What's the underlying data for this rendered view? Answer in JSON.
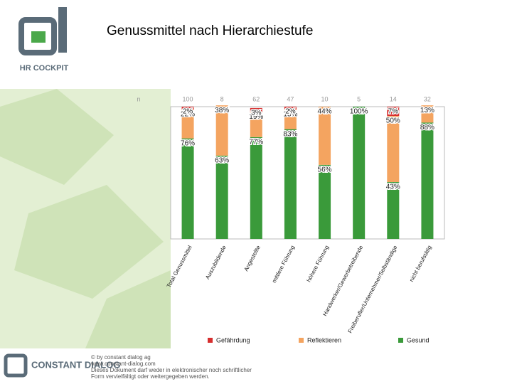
{
  "header": {
    "title": "Genussmittel nach Hierarchiestufe",
    "logo": "HR COCKPIT"
  },
  "chart_data": {
    "type": "stacked_bar",
    "categories": [
      "Total Genussmittel",
      "Auszubildende",
      "Angestellte",
      "mittlere Führung",
      "höhere Führung",
      "Handwerker/Gewerbetreibende",
      "Freiberufler/Unternehmer/Selbständige",
      "nicht berufstätig"
    ],
    "sample_size_label": "n",
    "sample_sizes": [
      100,
      8,
      62,
      47,
      10,
      5,
      14,
      32
    ],
    "ylim": [
      0,
      100
    ],
    "series": [
      {
        "name": "Gesund",
        "color": "#3a9a3a",
        "values": [
          76,
          63,
          77,
          83,
          56,
          100,
          43,
          88
        ],
        "value_labels": [
          "76%",
          "63%",
          "77%",
          "83%",
          "56%",
          "100%",
          "43%",
          "88%"
        ]
      },
      {
        "name": "Reflektieren",
        "color": "#f4a460",
        "values": [
          22,
          38,
          19,
          15,
          44,
          0,
          50,
          13
        ],
        "value_labels": [
          "22%",
          "38%",
          "19%",
          "15%",
          "44%",
          null,
          "50%",
          "13%"
        ]
      },
      {
        "name": "Gefährdung",
        "color": "#d62e2e",
        "values": [
          2,
          0,
          3,
          2,
          0,
          0,
          7,
          0
        ],
        "value_labels": [
          "2%",
          null,
          "3%",
          "2%",
          null,
          null,
          "7%",
          null
        ]
      }
    ]
  },
  "footer": {
    "brand": "CONSTANT DIALOG",
    "lines": [
      "© by constant dialog ag",
      "www.constant-dialog.com",
      "Dieses Dokument darf weder in elektronischer noch schriftlicher",
      "Form vervielfältigt oder weitergegeben werden."
    ]
  }
}
